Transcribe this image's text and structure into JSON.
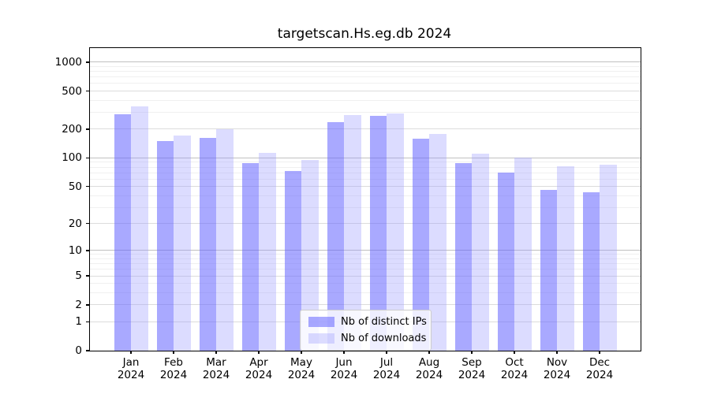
{
  "title": "targetscan.Hs.eg.db 2024",
  "chart_data": {
    "type": "bar",
    "title": "targetscan.Hs.eg.db 2024",
    "categories": [
      "Jan",
      "Feb",
      "Mar",
      "Apr",
      "May",
      "Jun",
      "Jul",
      "Aug",
      "Sep",
      "Oct",
      "Nov",
      "Dec"
    ],
    "year_label": "2024",
    "series": [
      {
        "name": "Nb of distinct IPs",
        "color": "#aaaaff",
        "values": [
          286,
          150,
          161,
          88,
          73,
          239,
          276,
          159,
          88,
          70,
          46,
          43
        ]
      },
      {
        "name": "Nb of downloads",
        "color": "#ddddff",
        "values": [
          347,
          173,
          198,
          112,
          96,
          283,
          291,
          177,
          110,
          100,
          81,
          85
        ]
      }
    ],
    "xlabel": "",
    "ylabel": "",
    "yaxis": {
      "scale": "log10(1+v)",
      "ticks": [
        0,
        1,
        2,
        5,
        10,
        20,
        50,
        100,
        200,
        500,
        1000
      ],
      "minor_ticks": [
        3,
        4,
        6,
        7,
        8,
        9,
        30,
        40,
        60,
        70,
        80,
        90,
        300,
        400,
        600,
        700,
        800,
        900
      ],
      "ymax": 1400
    },
    "grid": true,
    "legend_position": "bottom-center",
    "colors": {
      "frame": "#000000",
      "grid_major": "#c0c0c0",
      "grid_minor": "#f0f0f0",
      "grid": "#dcdcdc"
    }
  }
}
